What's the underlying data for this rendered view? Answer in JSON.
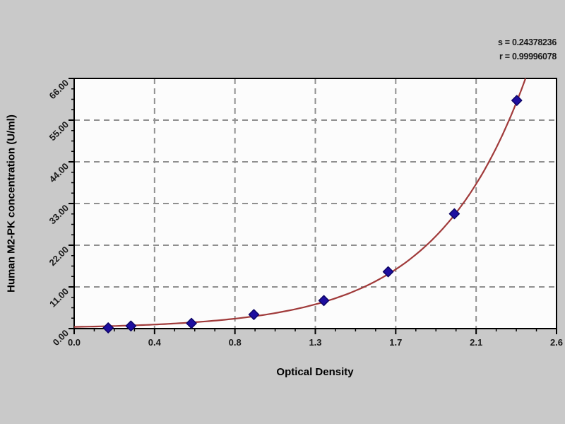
{
  "stats": {
    "line1": "s = 0.24378236",
    "line2": "r = 0.99996078"
  },
  "chart_data": {
    "type": "scatter",
    "title": "",
    "xlabel": "Optical Density",
    "ylabel": "Human M2-PK concentration (U/ml)",
    "xlim": [
      0,
      2.55
    ],
    "ylim": [
      0,
      66
    ],
    "x_major_ticks": [
      0,
      0.425,
      0.85,
      1.275,
      1.7,
      2.125,
      2.55
    ],
    "x_tick_labels": [
      "0.0",
      "0.4",
      "0.8",
      "1.3",
      "1.7",
      "2.1",
      "2.6"
    ],
    "y_major_ticks": [
      0,
      11,
      22,
      33,
      44,
      55,
      66
    ],
    "y_tick_labels": [
      "0.00",
      "11.00",
      "22.00",
      "33.00",
      "44.00",
      "55.00",
      "66.00"
    ],
    "minor_divisions_per_interval": 4,
    "grid": "dashed-at-major-ticks",
    "legend": "none",
    "points": [
      {
        "x": 0.18,
        "y": 0.2
      },
      {
        "x": 0.3,
        "y": 0.7
      },
      {
        "x": 0.62,
        "y": 1.4
      },
      {
        "x": 0.95,
        "y": 3.7
      },
      {
        "x": 1.32,
        "y": 7.4
      },
      {
        "x": 1.66,
        "y": 15.0
      },
      {
        "x": 2.01,
        "y": 30.3
      },
      {
        "x": 2.34,
        "y": 60.2
      }
    ],
    "fit_curve": {
      "type": "exponential",
      "equation": "y = a*exp(b*x)",
      "a": 0.44,
      "b": 2.1
    },
    "colors": {
      "curve": "#a03a3a",
      "marker": "#1e0ea0",
      "marker_edge": "#0d0566",
      "grid": "#8f8f8f",
      "frame": "#000000",
      "plot_bg": "#fcfcfc",
      "page_bg": "#c9c9c9",
      "text": "#1a1a1a"
    }
  }
}
